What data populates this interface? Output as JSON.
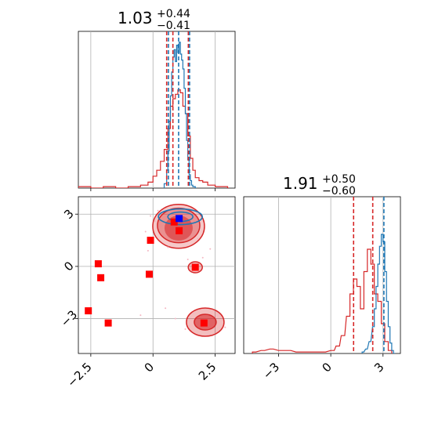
{
  "chart_data": {
    "type": "scatter",
    "title": "",
    "panels": [
      {
        "panel": "marginal-x",
        "title_value": "1.03",
        "title_plus": "+0.44",
        "title_minus": "−0.41",
        "xlim": [
          -3.0,
          3.3
        ],
        "x_ticks": [
          -2.5,
          0.0,
          2.5
        ],
        "grid": true,
        "blue_quantile_lines": [
          0.62,
          1.03,
          1.47
        ],
        "red_quantile_lines": [
          0.55,
          0.8,
          1.42
        ],
        "blue_hist": {
          "bins": [
            0.45,
            0.55,
            0.6,
            0.65,
            0.7,
            0.75,
            0.8,
            0.85,
            0.9,
            0.95,
            1.0,
            1.05,
            1.1,
            1.15,
            1.2,
            1.25,
            1.3,
            1.35,
            1.4,
            1.45,
            1.5,
            1.55,
            1.6,
            1.7
          ],
          "values": [
            0.03,
            0.12,
            0.25,
            0.45,
            0.62,
            0.78,
            0.88,
            0.93,
            0.85,
            0.96,
            0.91,
            0.98,
            0.9,
            0.86,
            0.8,
            0.67,
            0.5,
            0.32,
            0.19,
            0.09,
            0.05,
            0.02,
            0.01,
            0.0
          ]
        },
        "red_hist": {
          "bins": [
            -3.0,
            -2.5,
            -2.0,
            -1.5,
            -1.0,
            -0.5,
            -0.2,
            0.0,
            0.15,
            0.3,
            0.45,
            0.6,
            0.7,
            0.8,
            0.9,
            1.0,
            1.1,
            1.2,
            1.3,
            1.4,
            1.5,
            1.6,
            1.7,
            1.85,
            2.0,
            2.2,
            2.5,
            3.0
          ],
          "values": [
            0.01,
            0.0,
            0.01,
            0.0,
            0.01,
            0.02,
            0.04,
            0.08,
            0.12,
            0.18,
            0.26,
            0.4,
            0.55,
            0.6,
            0.63,
            0.66,
            0.64,
            0.55,
            0.5,
            0.35,
            0.2,
            0.12,
            0.07,
            0.05,
            0.04,
            0.02,
            0.01,
            0.0
          ]
        }
      },
      {
        "panel": "joint",
        "xlim": [
          -3.0,
          3.3
        ],
        "ylim": [
          -5.0,
          4.0
        ],
        "x_ticks": [
          -2.5,
          0.0,
          2.5
        ],
        "y_ticks": [
          -3,
          0,
          3
        ],
        "grid": true,
        "red_markers": [
          {
            "x": 0.85,
            "y": 2.55
          },
          {
            "x": 1.05,
            "y": 2.05
          },
          {
            "x": -0.1,
            "y": 1.5
          },
          {
            "x": -2.2,
            "y": 0.15
          },
          {
            "x": -2.1,
            "y": -0.65
          },
          {
            "x": -0.15,
            "y": -0.45
          },
          {
            "x": 1.7,
            "y": -0.05
          },
          {
            "x": -2.6,
            "y": -2.55
          },
          {
            "x": -1.8,
            "y": -3.25
          },
          {
            "x": 2.05,
            "y": -3.25
          }
        ],
        "blue_marker": {
          "x": 1.05,
          "y": 2.75
        },
        "red_density_modes": [
          {
            "x": 1.03,
            "y": 2.2
          },
          {
            "x": 2.1,
            "y": -3.2
          },
          {
            "x": 1.7,
            "y": -0.05
          }
        ],
        "blue_density_mode": {
          "x": 1.1,
          "y": 2.85
        }
      },
      {
        "panel": "marginal-y",
        "title_value": "1.91",
        "title_plus": "+0.50",
        "title_minus": "−0.60",
        "xlim": [
          -5.0,
          4.0
        ],
        "x_ticks": [
          -3,
          0,
          3
        ],
        "grid": true,
        "blue_quantile_lines": [
          2.2,
          2.55,
          3.05
        ],
        "red_quantile_lines": [
          1.31,
          2.41
        ]
      }
    ]
  },
  "colors": {
    "red": "#d62728",
    "blue": "#1f77b4",
    "marker_red": "#ff0000",
    "marker_blue": "#0000ff",
    "grid": "#b0b0b0"
  }
}
